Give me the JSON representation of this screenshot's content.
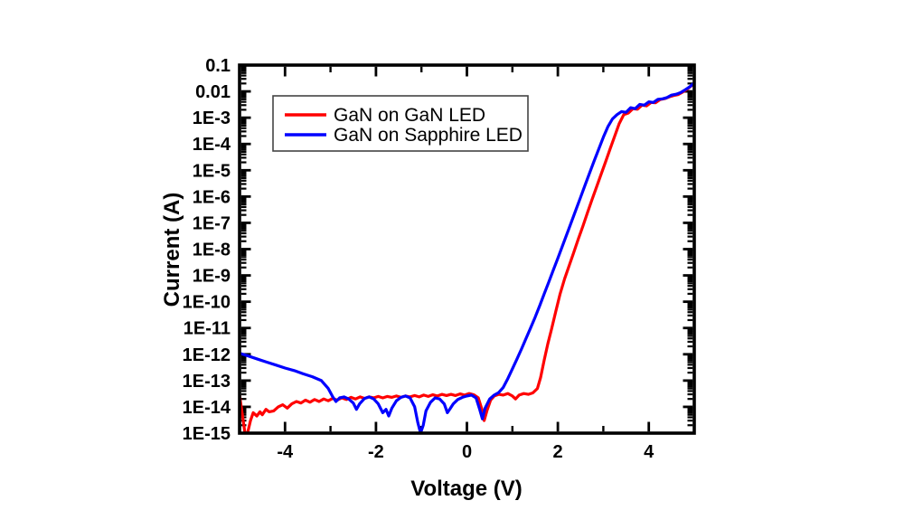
{
  "figure": {
    "background": "#ffffff"
  },
  "chart_data": {
    "type": "line",
    "title": "",
    "xlabel": "Voltage (V)",
    "ylabel": "Current (A)",
    "grid": false,
    "x_axis": {
      "min": -5,
      "max": 5,
      "scale": "linear",
      "major_ticks": [
        -4,
        -2,
        0,
        2,
        4
      ],
      "minor_ticks": [
        -3,
        -1,
        1,
        3
      ],
      "tick_labels": [
        "-4",
        "-2",
        "0",
        "2",
        "4"
      ]
    },
    "y_axis": {
      "min": 1e-15,
      "max": 0.1,
      "scale": "log",
      "tick_labels": [
        {
          "value": 0.1,
          "label": "0.1"
        },
        {
          "value": 0.01,
          "label": "0.01"
        },
        {
          "value": 0.001,
          "label": "1E-3"
        },
        {
          "value": 0.0001,
          "label": "1E-4"
        },
        {
          "value": 1e-05,
          "label": "1E-5"
        },
        {
          "value": 1e-06,
          "label": "1E-6"
        },
        {
          "value": 1e-07,
          "label": "1E-7"
        },
        {
          "value": 1e-08,
          "label": "1E-8"
        },
        {
          "value": 1e-09,
          "label": "1E-9"
        },
        {
          "value": 1e-10,
          "label": "1E-10"
        },
        {
          "value": 1e-11,
          "label": "1E-11"
        },
        {
          "value": 1e-12,
          "label": "1E-12"
        },
        {
          "value": 1e-13,
          "label": "1E-13"
        },
        {
          "value": 1e-14,
          "label": "1E-14"
        },
        {
          "value": 1e-15,
          "label": "1E-15"
        }
      ]
    },
    "legend": {
      "position": "top-left",
      "border": true
    },
    "series": [
      {
        "name": "GaN on GaN LED",
        "color": "#ff0000",
        "points": [
          [
            -5.0,
            2.8e-14
          ],
          [
            -4.93,
            4e-15
          ],
          [
            -4.88,
            1e-15
          ],
          [
            -4.82,
            1.1e-15
          ],
          [
            -4.76,
            3e-15
          ],
          [
            -4.7,
            6e-15
          ],
          [
            -4.62,
            4.5e-15
          ],
          [
            -4.55,
            6.5e-15
          ],
          [
            -4.5,
            5e-15
          ],
          [
            -4.42,
            8e-15
          ],
          [
            -4.35,
            6.5e-15
          ],
          [
            -4.25,
            7e-15
          ],
          [
            -4.15,
            1e-14
          ],
          [
            -4.05,
            1.2e-14
          ],
          [
            -3.95,
            9e-15
          ],
          [
            -3.85,
            1.3e-14
          ],
          [
            -3.75,
            1.6e-14
          ],
          [
            -3.65,
            1.4e-14
          ],
          [
            -3.55,
            1.8e-14
          ],
          [
            -3.45,
            1.5e-14
          ],
          [
            -3.35,
            1.9e-14
          ],
          [
            -3.25,
            1.6e-14
          ],
          [
            -3.15,
            2e-14
          ],
          [
            -3.05,
            1.7e-14
          ],
          [
            -2.95,
            2.1e-14
          ],
          [
            -2.85,
            1.8e-14
          ],
          [
            -2.75,
            2.2e-14
          ],
          [
            -2.65,
            1.9e-14
          ],
          [
            -2.55,
            2.3e-14
          ],
          [
            -2.45,
            2e-14
          ],
          [
            -2.35,
            2.4e-14
          ],
          [
            -2.25,
            2.1e-14
          ],
          [
            -2.15,
            2.4e-14
          ],
          [
            -2.05,
            2.2e-14
          ],
          [
            -1.95,
            2.5e-14
          ],
          [
            -1.85,
            2.2e-14
          ],
          [
            -1.75,
            2.5e-14
          ],
          [
            -1.65,
            2.3e-14
          ],
          [
            -1.55,
            2.6e-14
          ],
          [
            -1.45,
            2.3e-14
          ],
          [
            -1.35,
            2.6e-14
          ],
          [
            -1.25,
            2.4e-14
          ],
          [
            -1.15,
            2.7e-14
          ],
          [
            -1.05,
            2.4e-14
          ],
          [
            -0.95,
            2.8e-14
          ],
          [
            -0.85,
            2.5e-14
          ],
          [
            -0.75,
            2.9e-14
          ],
          [
            -0.65,
            2.6e-14
          ],
          [
            -0.55,
            3e-14
          ],
          [
            -0.45,
            2.7e-14
          ],
          [
            -0.35,
            3e-14
          ],
          [
            -0.25,
            2.7e-14
          ],
          [
            -0.15,
            3.1e-14
          ],
          [
            -0.05,
            2.8e-14
          ],
          [
            0.05,
            3.2e-14
          ],
          [
            0.15,
            2.9e-14
          ],
          [
            0.25,
            2.2e-14
          ],
          [
            0.33,
            8e-15
          ],
          [
            0.38,
            3e-15
          ],
          [
            0.44,
            7e-15
          ],
          [
            0.52,
            1.8e-14
          ],
          [
            0.6,
            2.6e-14
          ],
          [
            0.7,
            3e-14
          ],
          [
            0.8,
            2.8e-14
          ],
          [
            0.9,
            3.2e-14
          ],
          [
            1.0,
            2.6e-14
          ],
          [
            1.07,
            2e-14
          ],
          [
            1.15,
            2.8e-14
          ],
          [
            1.25,
            3.2e-14
          ],
          [
            1.35,
            3e-14
          ],
          [
            1.45,
            3.4e-14
          ],
          [
            1.55,
            5e-14
          ],
          [
            1.62,
            1.3e-13
          ],
          [
            1.7,
            6e-13
          ],
          [
            1.78,
            2.5e-12
          ],
          [
            1.86,
            9e-12
          ],
          [
            1.95,
            4e-11
          ],
          [
            2.05,
            2e-10
          ],
          [
            2.15,
            7.5e-10
          ],
          [
            2.25,
            2.4e-09
          ],
          [
            2.35,
            7.5e-09
          ],
          [
            2.45,
            2.4e-08
          ],
          [
            2.55,
            7.5e-08
          ],
          [
            2.65,
            2.4e-07
          ],
          [
            2.75,
            7.5e-07
          ],
          [
            2.85,
            2.3e-06
          ],
          [
            2.95,
            7e-06
          ],
          [
            3.05,
            2.1e-05
          ],
          [
            3.15,
            6.5e-05
          ],
          [
            3.25,
            0.0002
          ],
          [
            3.35,
            0.0006
          ],
          [
            3.45,
            0.0013
          ],
          [
            3.55,
            0.0015
          ],
          [
            3.65,
            0.0022
          ],
          [
            3.75,
            0.0021
          ],
          [
            3.85,
            0.003
          ],
          [
            3.95,
            0.0028
          ],
          [
            4.05,
            0.0038
          ],
          [
            4.15,
            0.0037
          ],
          [
            4.25,
            0.0049
          ],
          [
            4.35,
            0.0053
          ],
          [
            4.45,
            0.0062
          ],
          [
            4.55,
            0.007
          ],
          [
            4.65,
            0.0076
          ],
          [
            4.75,
            0.0095
          ],
          [
            4.85,
            0.0125
          ],
          [
            4.95,
            0.017
          ],
          [
            5.0,
            0.019
          ]
        ]
      },
      {
        "name": "GaN on Sapphire LED",
        "color": "#0000ff",
        "points": [
          [
            -5.0,
            1.1e-12
          ],
          [
            -4.8,
            8.5e-13
          ],
          [
            -4.6,
            6.5e-13
          ],
          [
            -4.4,
            5e-13
          ],
          [
            -4.2,
            3.9e-13
          ],
          [
            -4.0,
            3e-13
          ],
          [
            -3.8,
            2.4e-13
          ],
          [
            -3.6,
            1.8e-13
          ],
          [
            -3.4,
            1.4e-13
          ],
          [
            -3.2,
            1e-13
          ],
          [
            -3.05,
            5e-14
          ],
          [
            -2.95,
            2.4e-14
          ],
          [
            -2.88,
            1.6e-14
          ],
          [
            -2.8,
            2.2e-14
          ],
          [
            -2.7,
            2.4e-14
          ],
          [
            -2.6,
            2e-14
          ],
          [
            -2.5,
            1.4e-14
          ],
          [
            -2.43,
            8e-15
          ],
          [
            -2.36,
            1.3e-14
          ],
          [
            -2.25,
            2.1e-14
          ],
          [
            -2.15,
            2.4e-14
          ],
          [
            -2.05,
            2e-14
          ],
          [
            -1.95,
            1.3e-14
          ],
          [
            -1.85,
            6e-15
          ],
          [
            -1.78,
            8e-15
          ],
          [
            -1.72,
            4.5e-15
          ],
          [
            -1.65,
            9e-15
          ],
          [
            -1.55,
            1.7e-14
          ],
          [
            -1.45,
            2.3e-14
          ],
          [
            -1.35,
            2.6e-14
          ],
          [
            -1.25,
            2.2e-14
          ],
          [
            -1.15,
            1e-14
          ],
          [
            -1.08,
            2.5e-15
          ],
          [
            -1.02,
            1e-15
          ],
          [
            -0.96,
            2e-15
          ],
          [
            -0.9,
            7e-15
          ],
          [
            -0.8,
            1.5e-14
          ],
          [
            -0.7,
            2.2e-14
          ],
          [
            -0.6,
            2e-14
          ],
          [
            -0.5,
            1.3e-14
          ],
          [
            -0.43,
            6e-15
          ],
          [
            -0.37,
            8.5e-15
          ],
          [
            -0.3,
            1.3e-14
          ],
          [
            -0.2,
            1.9e-14
          ],
          [
            -0.1,
            2.3e-14
          ],
          [
            0.0,
            2.6e-14
          ],
          [
            0.1,
            2.8e-14
          ],
          [
            0.2,
            2.2e-14
          ],
          [
            0.28,
            8e-15
          ],
          [
            0.34,
            3.5e-15
          ],
          [
            0.4,
            9e-15
          ],
          [
            0.5,
            2e-14
          ],
          [
            0.6,
            2.8e-14
          ],
          [
            0.7,
            3.5e-14
          ],
          [
            0.8,
            5.5e-14
          ],
          [
            0.9,
            1.2e-13
          ],
          [
            1.0,
            2.8e-13
          ],
          [
            1.1,
            6.5e-13
          ],
          [
            1.2,
            1.6e-12
          ],
          [
            1.3,
            4e-12
          ],
          [
            1.4,
            1e-11
          ],
          [
            1.5,
            2.6e-11
          ],
          [
            1.6,
            7e-11
          ],
          [
            1.7,
            2e-10
          ],
          [
            1.8,
            5.5e-10
          ],
          [
            1.9,
            1.6e-09
          ],
          [
            2.0,
            4.5e-09
          ],
          [
            2.1,
            1.3e-08
          ],
          [
            2.2,
            3.8e-08
          ],
          [
            2.3,
            1.1e-07
          ],
          [
            2.4,
            3.2e-07
          ],
          [
            2.5,
            9.5e-07
          ],
          [
            2.6,
            2.8e-06
          ],
          [
            2.7,
            8e-06
          ],
          [
            2.8,
            2.3e-05
          ],
          [
            2.9,
            6.5e-05
          ],
          [
            3.0,
            0.00018
          ],
          [
            3.1,
            0.00045
          ],
          [
            3.2,
            0.0009
          ],
          [
            3.3,
            0.0013
          ],
          [
            3.4,
            0.0017
          ],
          [
            3.5,
            0.0016
          ],
          [
            3.6,
            0.0024
          ],
          [
            3.7,
            0.0022
          ],
          [
            3.8,
            0.0032
          ],
          [
            3.9,
            0.003
          ],
          [
            4.0,
            0.004
          ],
          [
            4.1,
            0.0038
          ],
          [
            4.2,
            0.005
          ],
          [
            4.3,
            0.0052
          ],
          [
            4.4,
            0.0058
          ],
          [
            4.5,
            0.0072
          ],
          [
            4.6,
            0.0078
          ],
          [
            4.7,
            0.009
          ],
          [
            4.8,
            0.0115
          ],
          [
            4.9,
            0.015
          ],
          [
            5.0,
            0.021
          ]
        ]
      }
    ]
  }
}
